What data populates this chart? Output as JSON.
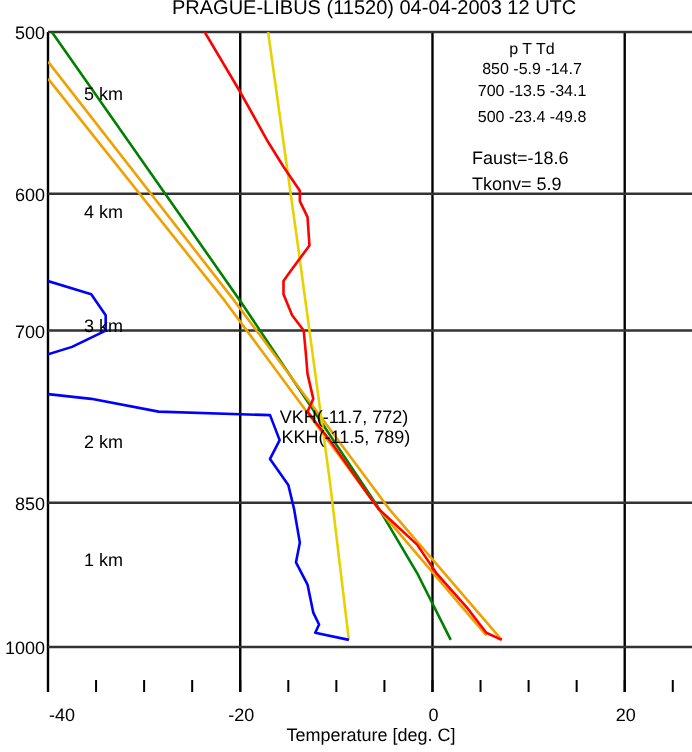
{
  "chart_data": {
    "type": "line",
    "title": "PRAGUE-LIBUS (11520)    04-04-2003   12  UTC",
    "xlabel": "Temperature [deg. C]",
    "xlim": [
      -40,
      27
    ],
    "ylim": [
      1052,
      500
    ],
    "log": "y",
    "grid": true,
    "legend": false,
    "marker": "none",
    "line_style": "solid",
    "xticks": [
      -40,
      {
        "value": -35,
        "label": null
      },
      {
        "value": -30,
        "label": null
      },
      {
        "value": -25,
        "label": null
      },
      -20,
      {
        "value": -15,
        "label": null
      },
      {
        "value": -10,
        "label": null
      },
      {
        "value": -5,
        "label": null
      },
      0,
      {
        "value": 5,
        "label": null
      },
      {
        "value": 10,
        "label": null
      },
      {
        "value": 15,
        "label": null
      },
      20,
      {
        "value": 25,
        "label": null
      }
    ],
    "yticks": [
      500,
      600,
      700,
      850,
      1000
    ],
    "series": [
      {
        "color": "#008000",
        "x": [
          -39.6,
          -20,
          -5.8,
          -1.6,
          1.9
        ],
        "values": [
          500,
          677,
          852,
          920,
          992
        ]
      },
      {
        "color": "#f0a000",
        "x": [
          -40,
          -20.6,
          -4.5,
          7.2
        ],
        "values": [
          517,
          677,
          856,
          992
        ]
      },
      {
        "color": "#f0a000",
        "x": [
          -40,
          -21.6,
          -5.6,
          5.6
        ],
        "values": [
          527,
          677,
          856,
          987
        ]
      },
      {
        "color": "#e6d200",
        "x": [
          -17.1,
          -14,
          -10.7,
          -8.7
        ],
        "values": [
          500,
          636,
          828,
          992
        ]
      },
      {
        "color": "#ff0000",
        "x": [
          -23.7,
          -20,
          -17.1,
          -15.5,
          -13.8,
          -13.8,
          -13,
          -12.8,
          -14.8,
          -15.5,
          -15.5,
          -14.6,
          -13.4,
          -13.2,
          -13,
          -12.4,
          -13,
          -12,
          -10.7,
          -6.8,
          -5.6,
          -1.6,
          0.4,
          3.7,
          5.6,
          7.2
        ],
        "values": [
          500,
          535,
          566,
          582,
          598,
          605,
          616,
          636,
          655,
          662,
          672,
          688,
          700,
          716,
          735,
          756,
          767,
          778,
          792,
          841,
          856,
          891,
          920,
          958,
          984,
          992
        ]
      },
      {
        "color": "#0000ff",
        "x": [
          -40,
          -35.5,
          -34,
          -34,
          -37.5,
          -40,
          null,
          -40,
          -35.5,
          -28.5,
          -16.9,
          -15.9,
          -16.9,
          -15,
          -14.4,
          -13.8,
          -14.2,
          -13,
          -12.4,
          -11.8,
          -12.2,
          -8.7
        ],
        "values": [
          662,
          672,
          688,
          700,
          713,
          719,
          null,
          752,
          756,
          767,
          770,
          792,
          809,
          833,
          856,
          889,
          909,
          932,
          962,
          975,
          984,
          992
        ]
      }
    ],
    "annotations": [
      "5 km",
      "4 km",
      "3 km",
      "2 km",
      "1 km",
      {
        "text": "VKH(-11.7, 772)",
        "x": -11.7,
        "y": 772
      },
      {
        "text": "KKH(-11.5, 789)",
        "x": -11.5,
        "y": 789
      },
      "p   T   Td",
      "850   -5.9   -14.7",
      "700  -13.5   -34.1",
      "500  -23.4   -49.8",
      "Faust=-18.6",
      "Tkonv=   5.9"
    ]
  }
}
